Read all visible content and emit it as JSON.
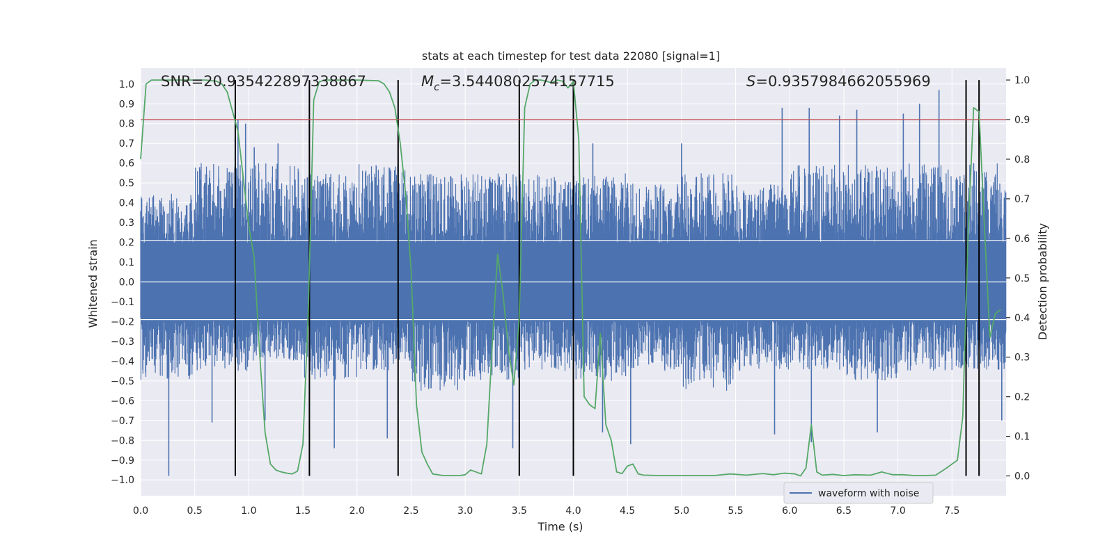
{
  "colors": {
    "plot_bg": "#eaeaf2",
    "grid": "#ffffff",
    "waveform": "#4c72b0",
    "probability": "#55a868",
    "threshold": "#c44e52",
    "marker": "#000000"
  },
  "chart_data": {
    "type": "line",
    "title": "stats at each timestep for test data 22080 [signal=1]",
    "xlabel": "Time (s)",
    "ylabel_left": "Whitened strain",
    "ylabel_right": "Detection probability",
    "xlim": [
      0.0,
      8.0
    ],
    "ylim_left": [
      -1.08,
      1.08
    ],
    "ylim_right": [
      -0.05,
      1.03
    ],
    "x_ticks": [
      "0.0",
      "0.5",
      "1.0",
      "1.5",
      "2.0",
      "2.5",
      "3.0",
      "3.5",
      "4.0",
      "4.5",
      "5.0",
      "5.5",
      "6.0",
      "6.5",
      "7.0",
      "7.5"
    ],
    "y_left_ticks": [
      "−1.0",
      "−0.9",
      "−0.8",
      "−0.7",
      "−0.6",
      "−0.5",
      "−0.4",
      "−0.3",
      "−0.2",
      "−0.1",
      "0.0",
      "0.1",
      "0.2",
      "0.3",
      "0.4",
      "0.5",
      "0.6",
      "0.7",
      "0.8",
      "0.9",
      "1.0"
    ],
    "y_right_ticks": [
      "0.0",
      "0.1",
      "0.2",
      "0.3",
      "0.4",
      "0.5",
      "0.6",
      "0.7",
      "0.8",
      "0.9",
      "1.0"
    ],
    "grid": true,
    "legend": {
      "position": "lower right",
      "label": "waveform with noise"
    },
    "annotations": [
      {
        "text": "SNR=20.935422897338867",
        "x": 0.2
      },
      {
        "symbol": "M",
        "sub": "c",
        "value": "=3.5440802574157715",
        "x": 2.6
      },
      {
        "symbol": "S",
        "value": "=0.9357984662055969",
        "x": 5.6
      }
    ],
    "threshold_right": 0.9,
    "vertical_lines": [
      0.875,
      1.56,
      2.38,
      3.5,
      4.0,
      7.63,
      7.75
    ],
    "waveform": {
      "name": "waveform with noise",
      "t_range": [
        0.0,
        7.998
      ],
      "n_samples": 3000,
      "envelope_min": [
        -0.5,
        -0.45,
        -0.4,
        -0.5,
        -0.45,
        -0.55,
        -0.5,
        -0.45,
        -0.5,
        -0.45,
        -0.55,
        -0.45,
        -0.45,
        -0.5,
        -0.45,
        -0.45
      ],
      "envelope_max": [
        0.45,
        0.6,
        0.6,
        0.55,
        0.6,
        0.55,
        0.55,
        0.55,
        0.55,
        0.5,
        0.55,
        0.5,
        0.6,
        0.6,
        0.6,
        0.6
      ],
      "spikes": [
        {
          "t": 0.26,
          "v": -0.98
        },
        {
          "t": 0.66,
          "v": -0.71
        },
        {
          "t": 0.9,
          "v": 0.82
        },
        {
          "t": 0.97,
          "v": 0.8
        },
        {
          "t": 1.05,
          "v": 0.68
        },
        {
          "t": 1.15,
          "v": -0.7
        },
        {
          "t": 1.27,
          "v": 0.7
        },
        {
          "t": 1.79,
          "v": -0.84
        },
        {
          "t": 2.28,
          "v": -0.79
        },
        {
          "t": 2.38,
          "v": 0.63
        },
        {
          "t": 3.44,
          "v": -0.84
        },
        {
          "t": 4.18,
          "v": 0.7
        },
        {
          "t": 4.27,
          "v": -0.76
        },
        {
          "t": 4.53,
          "v": -0.82
        },
        {
          "t": 5.0,
          "v": 0.7
        },
        {
          "t": 5.86,
          "v": -0.77
        },
        {
          "t": 5.93,
          "v": 0.88
        },
        {
          "t": 6.18,
          "v": 0.88
        },
        {
          "t": 6.2,
          "v": -0.81
        },
        {
          "t": 6.46,
          "v": 0.84
        },
        {
          "t": 6.62,
          "v": 0.87
        },
        {
          "t": 6.81,
          "v": -0.76
        },
        {
          "t": 7.05,
          "v": 0.85
        },
        {
          "t": 7.2,
          "v": 0.9
        },
        {
          "t": 7.38,
          "v": 0.97
        },
        {
          "t": 7.63,
          "v": 0.62
        },
        {
          "t": 7.7,
          "v": 0.6
        },
        {
          "t": 7.96,
          "v": -0.7
        }
      ]
    },
    "probability": {
      "x": [
        0.0,
        0.05,
        0.1,
        0.2,
        0.4,
        0.6,
        0.7,
        0.75,
        0.8,
        0.85,
        0.9,
        1.0,
        1.05,
        1.1,
        1.15,
        1.2,
        1.25,
        1.3,
        1.35,
        1.4,
        1.45,
        1.5,
        1.55,
        1.6,
        1.65,
        1.7,
        1.8,
        2.0,
        2.2,
        2.25,
        2.3,
        2.35,
        2.4,
        2.45,
        2.5,
        2.55,
        2.6,
        2.65,
        2.7,
        2.8,
        2.9,
        2.95,
        3.0,
        3.05,
        3.1,
        3.15,
        3.2,
        3.25,
        3.3,
        3.35,
        3.4,
        3.45,
        3.5,
        3.55,
        3.6,
        3.65,
        3.7,
        3.75,
        3.8,
        3.85,
        3.9,
        3.95,
        4.0,
        4.05,
        4.1,
        4.15,
        4.2,
        4.25,
        4.3,
        4.35,
        4.4,
        4.45,
        4.5,
        4.55,
        4.6,
        4.65,
        4.8,
        5.0,
        5.3,
        5.45,
        5.6,
        5.75,
        5.85,
        5.95,
        6.05,
        6.1,
        6.15,
        6.2,
        6.25,
        6.3,
        6.4,
        6.5,
        6.6,
        6.75,
        6.85,
        6.95,
        7.05,
        7.15,
        7.25,
        7.35,
        7.45,
        7.55,
        7.6,
        7.65,
        7.7,
        7.75,
        7.8,
        7.85,
        7.9,
        7.95
      ],
      "y": [
        0.8,
        0.99,
        1.0,
        1.0,
        1.0,
        1.0,
        0.997,
        0.99,
        0.97,
        0.92,
        0.87,
        0.63,
        0.55,
        0.31,
        0.11,
        0.03,
        0.015,
        0.01,
        0.007,
        0.005,
        0.012,
        0.08,
        0.42,
        0.95,
        0.995,
        1.0,
        1.0,
        1.0,
        0.998,
        0.99,
        0.97,
        0.93,
        0.84,
        0.71,
        0.52,
        0.18,
        0.06,
        0.03,
        0.005,
        0.001,
        0.001,
        0.001,
        0.003,
        0.015,
        0.01,
        0.005,
        0.08,
        0.33,
        0.56,
        0.46,
        0.32,
        0.23,
        0.4,
        0.93,
        0.99,
        1.0,
        1.0,
        0.997,
        0.993,
        1.0,
        0.997,
        0.98,
        0.996,
        0.85,
        0.2,
        0.18,
        0.17,
        0.36,
        0.13,
        0.09,
        0.01,
        0.006,
        0.025,
        0.03,
        0.005,
        0.002,
        0.001,
        0.001,
        0.001,
        0.005,
        0.002,
        0.006,
        0.003,
        0.007,
        0.005,
        0.0,
        0.02,
        0.13,
        0.01,
        0.002,
        0.004,
        0.001,
        0.003,
        0.002,
        0.01,
        0.003,
        0.003,
        0.001,
        0.001,
        0.002,
        0.02,
        0.04,
        0.15,
        0.62,
        0.93,
        0.92,
        0.63,
        0.35,
        0.41,
        0.42
      ]
    }
  }
}
